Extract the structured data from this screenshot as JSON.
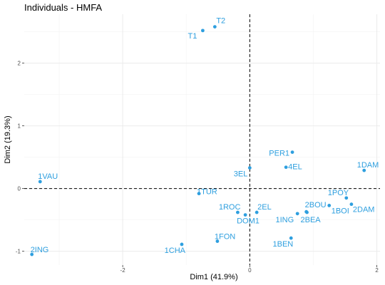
{
  "chart_data": {
    "type": "scatter",
    "title": "Individuals - HMFA",
    "xlabel": "Dim1 (41.9%)",
    "ylabel": "Dim2 (19.3%)",
    "xlim": [
      -3.55,
      2.05
    ],
    "ylim": [
      -1.22,
      2.78
    ],
    "x_ticks": [
      -2,
      0,
      2
    ],
    "y_ticks": [
      -1,
      0,
      1,
      2
    ],
    "grid": true,
    "reference_lines": {
      "x": 0,
      "y": 0
    },
    "point_color": "#2E9FDF",
    "line_color": "#000000",
    "grid_color": "#ebebeb",
    "points": [
      {
        "label": "T2",
        "x": -0.55,
        "y": 2.58
      },
      {
        "label": "T1",
        "x": -0.74,
        "y": 2.52
      },
      {
        "label": "PER1",
        "x": 0.67,
        "y": 0.58
      },
      {
        "label": "4EL",
        "x": 0.57,
        "y": 0.34
      },
      {
        "label": "1DAM",
        "x": 1.8,
        "y": 0.29
      },
      {
        "label": "3EL",
        "x": 0.0,
        "y": 0.33
      },
      {
        "label": "1VAU",
        "x": -3.3,
        "y": 0.11
      },
      {
        "label": "1TUR",
        "x": -0.8,
        "y": -0.08
      },
      {
        "label": "1POY",
        "x": 1.52,
        "y": -0.15
      },
      {
        "label": "1BOI",
        "x": 1.25,
        "y": -0.27
      },
      {
        "label": "2DAM",
        "x": 1.6,
        "y": -0.25
      },
      {
        "label": "2BOU",
        "x": 0.89,
        "y": -0.37
      },
      {
        "label": "2BEA",
        "x": 0.9,
        "y": -0.38
      },
      {
        "label": "1ING",
        "x": 0.75,
        "y": -0.4
      },
      {
        "label": "1ROC",
        "x": -0.19,
        "y": -0.38
      },
      {
        "label": "2EL",
        "x": 0.11,
        "y": -0.38
      },
      {
        "label": "DOM1",
        "x": -0.07,
        "y": -0.42
      },
      {
        "label": "1BEN",
        "x": 0.65,
        "y": -0.79
      },
      {
        "label": "1FON",
        "x": -0.51,
        "y": -0.84
      },
      {
        "label": "1CHA",
        "x": -1.07,
        "y": -0.89
      },
      {
        "label": "2ING",
        "x": -3.43,
        "y": -1.05
      }
    ]
  }
}
